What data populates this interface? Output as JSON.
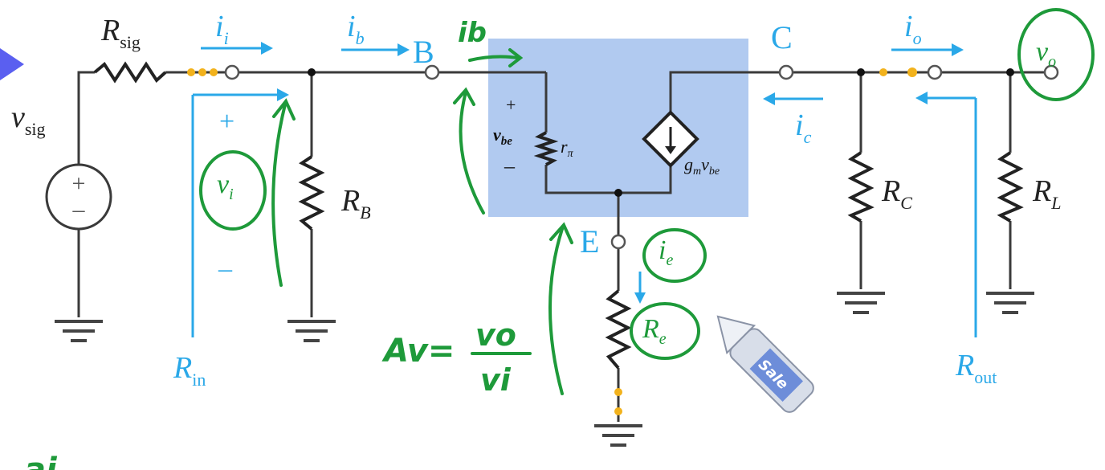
{
  "colors": {
    "wire": "#3a3a3a",
    "blue_label": "#2aa8e8",
    "model_box": "#a9c4ee",
    "green_ink": "#1e9a3a",
    "yellow_dot": "#f2b21c",
    "pointer": "#5a5ff0"
  },
  "labels": {
    "R_sig": {
      "main": "R",
      "sub": "sig"
    },
    "v_sig": {
      "main": "v",
      "sub": "sig"
    },
    "i_i": {
      "main": "i",
      "sub": "i"
    },
    "i_b": {
      "main": "i",
      "sub": "b"
    },
    "node_B": "B",
    "node_C": "C",
    "node_E": "E",
    "i_o": {
      "main": "i",
      "sub": "o"
    },
    "i_c": {
      "main": "i",
      "sub": "c"
    },
    "R_B": {
      "main": "R",
      "sub": "B"
    },
    "R_C": {
      "main": "R",
      "sub": "C"
    },
    "R_L": {
      "main": "R",
      "sub": "L"
    },
    "R_in": {
      "main": "R",
      "sub": "in"
    },
    "R_out": {
      "main": "R",
      "sub": "out"
    },
    "plus": "+",
    "minus": "–",
    "v_be": {
      "main": "v",
      "sub": "be"
    },
    "r_pi": {
      "main": "r",
      "sub": "π"
    },
    "gm_vbe": {
      "g": "g",
      "m": "m",
      "v": "v",
      "be": "be"
    },
    "src_plus": "+",
    "src_minus": "–"
  },
  "annotations": {
    "ib_handwritten": "ib",
    "vi_circled": {
      "main": "v",
      "sub": "i"
    },
    "vo_circled": {
      "main": "v",
      "sub": "o"
    },
    "ie_circled": {
      "main": "i",
      "sub": "e"
    },
    "Re_circled": {
      "main": "R",
      "sub": "e"
    },
    "gain_lhs": "Av=",
    "gain_num": "vo",
    "gain_den": "vi",
    "bottom_scribble": "ai"
  },
  "pointer_label": "Sale"
}
